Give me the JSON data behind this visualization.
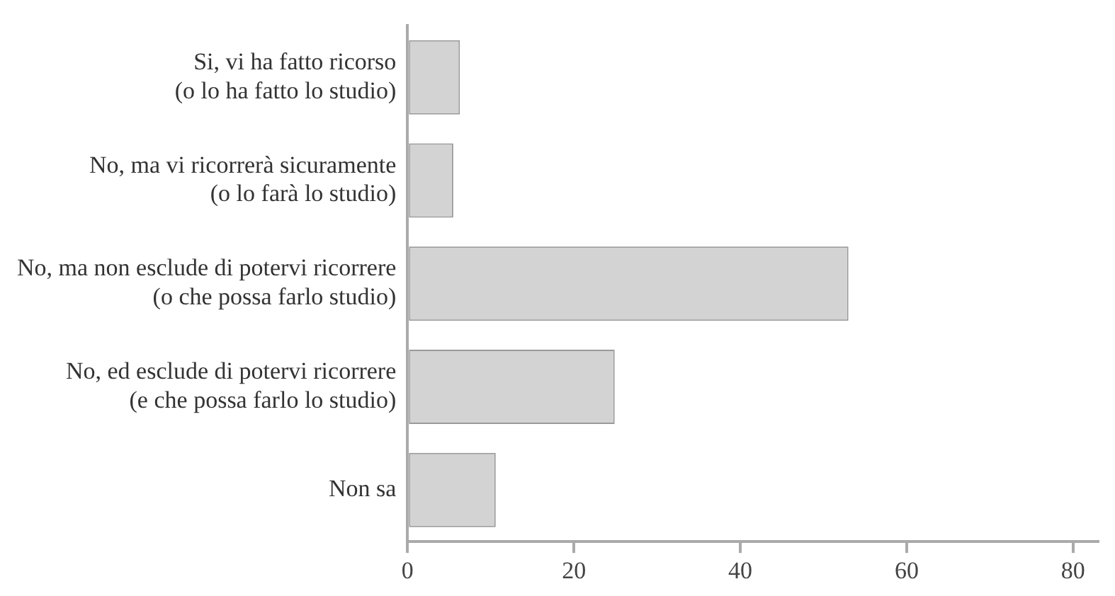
{
  "chart_data": {
    "type": "bar",
    "orientation": "horizontal",
    "categories": [
      "Si, vi ha fatto ricorso\n(o lo ha fatto lo studio)",
      "No, ma vi ricorrerà sicuramente\n(o lo farà lo studio)",
      "No, ma non esclude di potervi ricorrere\n(o che possa farlo studio)",
      "No, ed esclude di potervi ricorrere\n(e che possa farlo lo studio)",
      "Non sa"
    ],
    "values": [
      6.3,
      5.5,
      53,
      24.9,
      10.6
    ],
    "color": "#d3d3d3",
    "xlim": [
      0,
      83
    ],
    "xticks": [
      0,
      20,
      40,
      60,
      80
    ],
    "grid": false,
    "legend": false
  }
}
